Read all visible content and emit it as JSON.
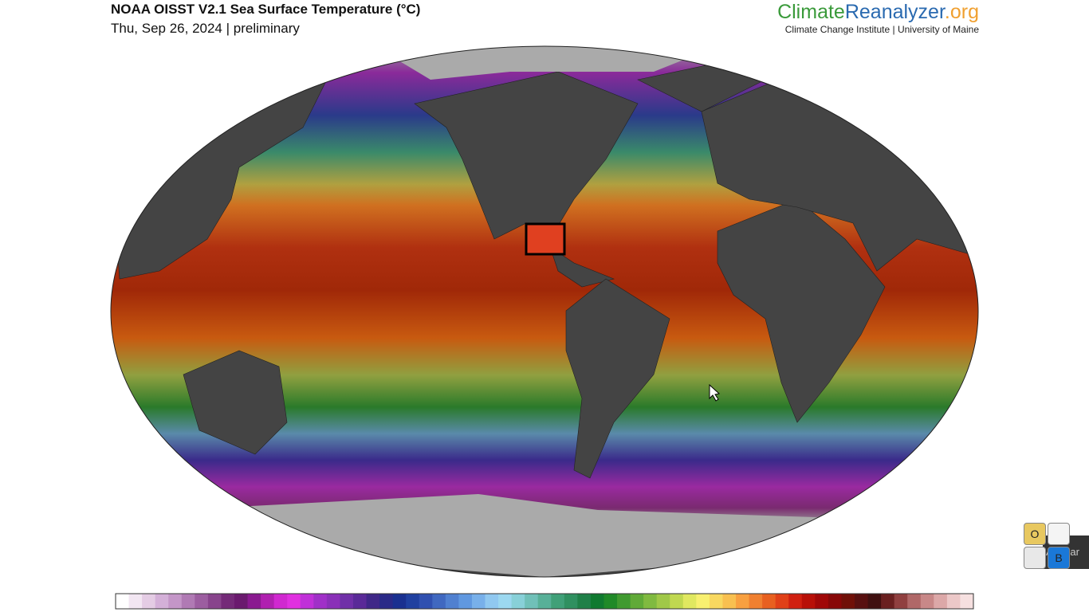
{
  "header": {
    "title": "NOAA OISST V2.1 Sea Surface Temperature (°C)",
    "subtitle": "Thu, Sep 26, 2024 | preliminary",
    "brand": [
      "Climate",
      "Reanalyzer",
      ".org"
    ],
    "institution": "Climate Change Institute | University of Maine"
  },
  "widget": {
    "buttons": [
      "O",
      "B"
    ],
    "label": "Apagar"
  },
  "colorbar": {
    "colors": [
      "#ffffff",
      "#f2e6f2",
      "#e4cce4",
      "#d4b0d8",
      "#c496c8",
      "#b07ab4",
      "#9c5ea0",
      "#88448c",
      "#742a78",
      "#6a1a6e",
      "#8a1a90",
      "#b020b0",
      "#d028d0",
      "#e030e0",
      "#c030d8",
      "#a030c8",
      "#8a30b8",
      "#7030a8",
      "#5a2a98",
      "#402888",
      "#2a2a88",
      "#1a3090",
      "#2040a0",
      "#3050b0",
      "#4068c0",
      "#5080d0",
      "#6098e0",
      "#78b0ea",
      "#90c8f0",
      "#9cd8f0",
      "#88d0d8",
      "#70c0b8",
      "#58b098",
      "#40a078",
      "#309060",
      "#208048",
      "#107a30",
      "#208a28",
      "#409a30",
      "#60aa38",
      "#80ba40",
      "#a0c848",
      "#c0d850",
      "#e0e860",
      "#f8f070",
      "#f8d860",
      "#f8c050",
      "#f8a040",
      "#f08030",
      "#e86020",
      "#e04018",
      "#d02010",
      "#b81008",
      "#a00808",
      "#880808",
      "#701008",
      "#581010",
      "#401010",
      "#6a2020",
      "#904040",
      "#b06868",
      "#c88888",
      "#dca8a8",
      "#ecc8c8",
      "#f6e0e0"
    ]
  }
}
